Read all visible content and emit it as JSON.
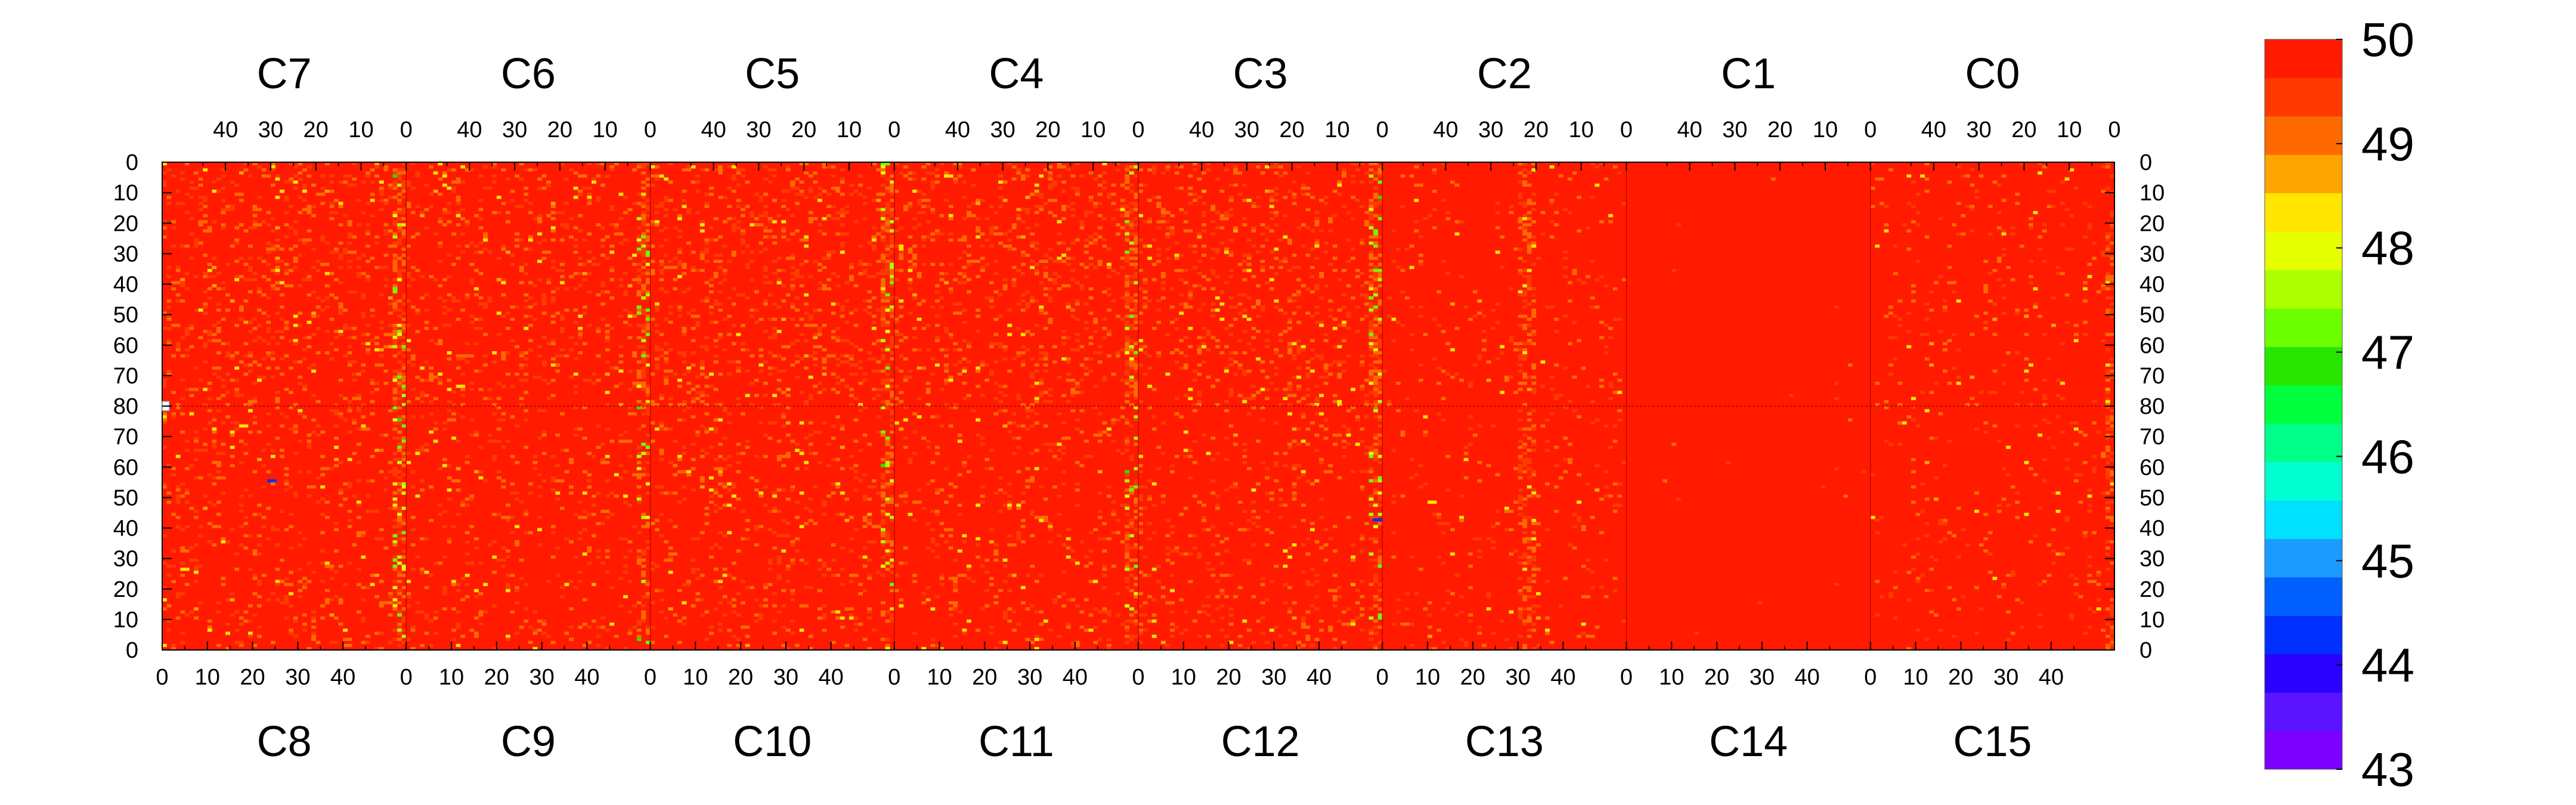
{
  "chart_data": {
    "type": "heatmap",
    "title": "",
    "xlabel": "",
    "ylabel": "",
    "top_chips": [
      "C7",
      "C6",
      "C5",
      "C4",
      "C3",
      "C2",
      "C1",
      "C0"
    ],
    "bottom_chips": [
      "C8",
      "C9",
      "C10",
      "C11",
      "C12",
      "C13",
      "C14",
      "C15"
    ],
    "top_axis_ticks": [
      40,
      30,
      20,
      10,
      0
    ],
    "bottom_axis_ticks": [
      0,
      10,
      20,
      30,
      40
    ],
    "top_half_y_ticks": [
      0,
      10,
      20,
      30,
      40,
      50,
      60,
      70,
      80
    ],
    "bottom_half_y_ticks": [
      70,
      60,
      50,
      40,
      30,
      20,
      10,
      0
    ],
    "columns_per_chip": 54,
    "rows_per_half": 80,
    "zlim": [
      43,
      50
    ],
    "colorbar_ticks": [
      50,
      49,
      48,
      47,
      46,
      45,
      44,
      43
    ],
    "colorbar_colors": [
      "#7b00ff",
      "#5a14ff",
      "#2a00ff",
      "#0030ff",
      "#0060ff",
      "#1b9bff",
      "#00e0ff",
      "#00ffd0",
      "#00ff8a",
      "#00ff3c",
      "#28e600",
      "#6bff00",
      "#adff00",
      "#e6ff00",
      "#ffe600",
      "#ffa500",
      "#ff6a00",
      "#ff3a00",
      "#ff1a00"
    ],
    "background_value": 50,
    "description_values": {
      "dominant": 50,
      "common_noise_low": 49,
      "edge_column_low": 47
    }
  }
}
